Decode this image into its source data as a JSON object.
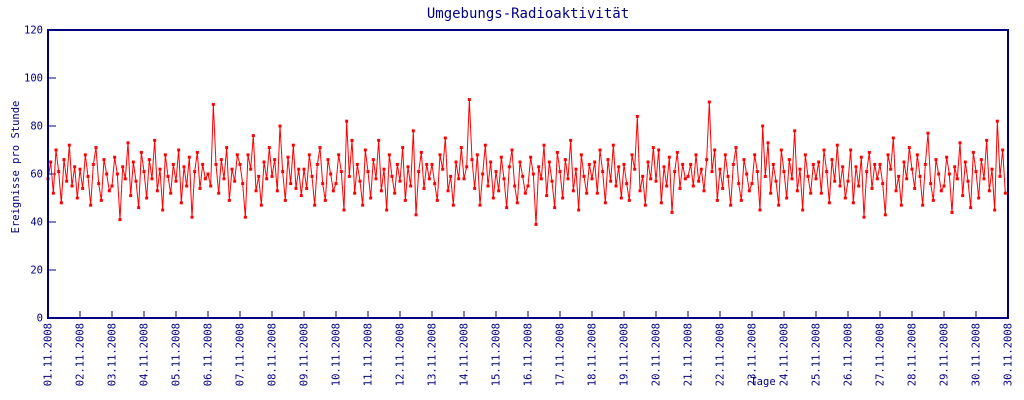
{
  "chart_data": {
    "type": "line",
    "title": "Umgebungs-Radioaktivität",
    "xlabel": "Tage",
    "ylabel": "Ereignisse pro Stunde",
    "ylim": [
      0,
      120
    ],
    "yticks": [
      0,
      20,
      40,
      60,
      80,
      100,
      120
    ],
    "xtick_labels": [
      "01.11.2008",
      "02.11.2008",
      "03.11.2008",
      "04.11.2008",
      "05.11.2008",
      "06.11.2008",
      "07.11.2008",
      "08.11.2008",
      "09.11.2008",
      "10.11.2008",
      "11.11.2008",
      "12.11.2008",
      "13.11.2008",
      "14.11.2008",
      "15.11.2008",
      "16.11.2008",
      "17.11.2008",
      "18.11.2008",
      "19.11.2008",
      "20.11.2008",
      "21.11.2008",
      "22.11.2008",
      "23.11.2008",
      "24.11.2008",
      "25.11.2008",
      "26.11.2008",
      "27.11.2008",
      "28.11.2008",
      "29.11.2008",
      "30.11.2008",
      "30.11.2008"
    ],
    "grid": false,
    "legend": "none",
    "marker": "square",
    "series_color": "#ff0000",
    "axis_color": "#000080",
    "background_color": "#ffffff",
    "points_per_day": 12,
    "values": [
      58,
      65,
      52,
      70,
      61,
      48,
      66,
      57,
      72,
      55,
      63,
      50,
      62,
      54,
      68,
      59,
      47,
      64,
      71,
      56,
      49,
      66,
      60,
      53,
      55,
      67,
      60,
      41,
      63,
      58,
      73,
      51,
      65,
      57,
      46,
      69,
      61,
      50,
      66,
      58,
      74,
      53,
      62,
      45,
      68,
      59,
      52,
      64,
      57,
      70,
      48,
      63,
      55,
      67,
      42,
      61,
      69,
      54,
      64,
      58,
      60,
      55,
      89,
      64,
      52,
      66,
      58,
      71,
      49,
      62,
      57,
      68,
      64,
      56,
      42,
      68,
      62,
      76,
      53,
      59,
      47,
      65,
      58,
      71,
      59,
      66,
      53,
      80,
      61,
      49,
      67,
      56,
      72,
      54,
      62,
      51,
      62,
      54,
      68,
      59,
      47,
      64,
      71,
      56,
      49,
      66,
      60,
      53,
      56,
      68,
      61,
      45,
      82,
      59,
      74,
      52,
      64,
      57,
      47,
      70,
      61,
      50,
      66,
      58,
      74,
      53,
      62,
      45,
      68,
      59,
      52,
      64,
      57,
      71,
      49,
      63,
      55,
      78,
      43,
      61,
      69,
      54,
      64,
      58,
      64,
      56,
      49,
      68,
      62,
      75,
      53,
      59,
      47,
      65,
      58,
      71,
      58,
      63,
      91,
      66,
      54,
      68,
      47,
      60,
      72,
      55,
      65,
      50,
      61,
      53,
      67,
      58,
      46,
      63,
      70,
      55,
      48,
      65,
      59,
      52,
      55,
      67,
      60,
      39,
      63,
      58,
      72,
      51,
      65,
      57,
      46,
      69,
      61,
      50,
      66,
      58,
      74,
      53,
      62,
      45,
      68,
      59,
      52,
      64,
      58,
      65,
      52,
      70,
      61,
      48,
      66,
      57,
      72,
      55,
      63,
      50,
      64,
      56,
      49,
      68,
      62,
      84,
      53,
      59,
      47,
      65,
      58,
      71,
      57,
      70,
      48,
      63,
      55,
      67,
      44,
      61,
      69,
      54,
      64,
      58,
      59,
      64,
      55,
      68,
      57,
      62,
      53,
      66,
      90,
      61,
      70,
      49,
      62,
      54,
      68,
      59,
      47,
      64,
      71,
      56,
      49,
      66,
      60,
      53,
      56,
      68,
      61,
      45,
      80,
      59,
      73,
      52,
      64,
      57,
      47,
      70,
      61,
      50,
      66,
      58,
      78,
      53,
      62,
      45,
      68,
      59,
      52,
      64,
      58,
      65,
      52,
      70,
      61,
      48,
      66,
      57,
      72,
      55,
      63,
      50,
      57,
      70,
      48,
      63,
      55,
      67,
      42,
      61,
      69,
      54,
      64,
      58,
      64,
      56,
      43,
      68,
      62,
      75,
      53,
      59,
      47,
      65,
      58,
      71,
      62,
      54,
      68,
      59,
      47,
      64,
      77,
      56,
      49,
      66,
      60,
      53,
      55,
      67,
      60,
      44,
      63,
      58,
      73,
      51,
      65,
      57,
      46,
      69,
      61,
      50,
      66,
      58,
      74,
      53,
      62,
      45,
      82,
      59,
      70,
      52
    ]
  }
}
